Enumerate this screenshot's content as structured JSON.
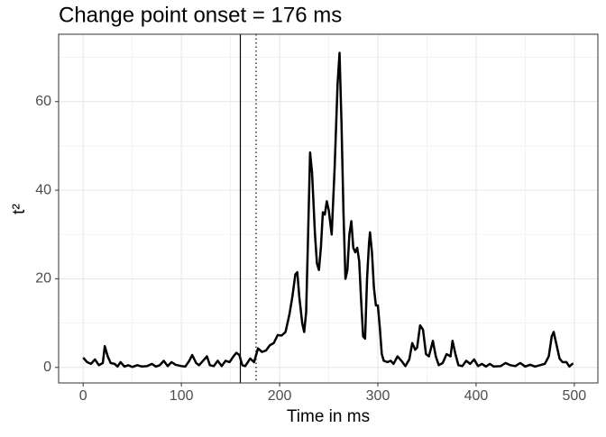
{
  "chart_data": {
    "type": "line",
    "title": "Change point onset = 176 ms",
    "xlabel": "Time in ms",
    "ylabel": "t²",
    "x": [
      0,
      4,
      8,
      12,
      16,
      20,
      22,
      25,
      28,
      32,
      35,
      38,
      42,
      46,
      50,
      55,
      60,
      65,
      70,
      74,
      78,
      82,
      86,
      90,
      94,
      100,
      104,
      108,
      111,
      115,
      118,
      122,
      126,
      129,
      133,
      137,
      141,
      145,
      149,
      153,
      156,
      159,
      162,
      165,
      170,
      174,
      178,
      182,
      186,
      190,
      194,
      198,
      202,
      206,
      210,
      213,
      216,
      218,
      220,
      223,
      225,
      227,
      229,
      231,
      233,
      236,
      238,
      240,
      242,
      244,
      246,
      248,
      250,
      253,
      256,
      259,
      261,
      263,
      265,
      267,
      269,
      271,
      273,
      275,
      277,
      279,
      281,
      283,
      285,
      287,
      289,
      291,
      292,
      294,
      296,
      298,
      300,
      302,
      304,
      306,
      310,
      313,
      316,
      320,
      324,
      328,
      332,
      335,
      338,
      340,
      343,
      346,
      349,
      352,
      356,
      359,
      362,
      366,
      370,
      374,
      376,
      379,
      382,
      386,
      390,
      394,
      398,
      402,
      406,
      410,
      414,
      418,
      425,
      430,
      435,
      440,
      445,
      450,
      455,
      460,
      465,
      470,
      474,
      477,
      479,
      482,
      485,
      488,
      492,
      495,
      498,
      499
    ],
    "series": [
      {
        "name": "t2",
        "color": "#000000",
        "values": [
          2.2,
          1.2,
          0.8,
          1.8,
          0.5,
          1,
          4.8,
          2.5,
          1,
          0.8,
          0.2,
          1.2,
          0.2,
          0.5,
          0.1,
          0.5,
          0.2,
          0.3,
          0.8,
          0.2,
          0.5,
          1.5,
          0.3,
          1.2,
          0.6,
          0.3,
          0.2,
          1.5,
          2.8,
          1,
          0.5,
          1.5,
          2.5,
          0.5,
          0.3,
          1.5,
          0.3,
          1.5,
          1.2,
          2.5,
          3.3,
          2.8,
          0.5,
          0.3,
          2,
          1.2,
          4.3,
          3.5,
          3.8,
          5,
          5.5,
          7.3,
          7.2,
          8,
          12,
          16,
          21,
          21.5,
          16,
          10,
          8,
          12.5,
          30,
          48.5,
          44,
          30,
          23.5,
          22,
          27,
          35,
          34.5,
          37.5,
          35.5,
          30,
          45,
          64,
          71,
          55,
          35,
          20,
          22,
          30,
          33,
          27,
          26,
          27,
          24,
          15,
          7,
          6.5,
          20,
          28,
          30.5,
          26,
          18,
          14,
          14,
          9,
          3,
          1.5,
          1.2,
          1.5,
          0.8,
          2.5,
          1.5,
          0.3,
          1.8,
          5.5,
          4,
          4.5,
          9.5,
          8.5,
          3,
          2.5,
          6,
          2.5,
          0.5,
          1,
          3,
          2.5,
          6,
          3,
          0.5,
          0.3,
          1.5,
          0.8,
          1.8,
          0.3,
          0.8,
          0.2,
          0.8,
          0.2,
          0.3,
          1,
          0.5,
          0.3,
          1,
          0.2,
          0.6,
          0.2,
          0.5,
          0.8,
          2.5,
          7,
          8,
          5,
          2,
          1.2,
          1.2,
          0.2,
          0.8,
          0.8
        ]
      }
    ],
    "vlines": [
      {
        "x": 160,
        "style": "solid"
      },
      {
        "x": 176,
        "style": "dotted"
      }
    ],
    "xlim": [
      -25,
      524
    ],
    "ylim": [
      -3.5,
      75.2
    ],
    "xticks": [
      0,
      100,
      200,
      300,
      400,
      500
    ],
    "yticks": [
      0,
      20,
      40,
      60
    ],
    "minor_xticks": [
      50,
      150,
      250,
      350,
      450
    ],
    "minor_yticks": [
      10,
      30,
      50,
      70
    ],
    "grid": true
  }
}
